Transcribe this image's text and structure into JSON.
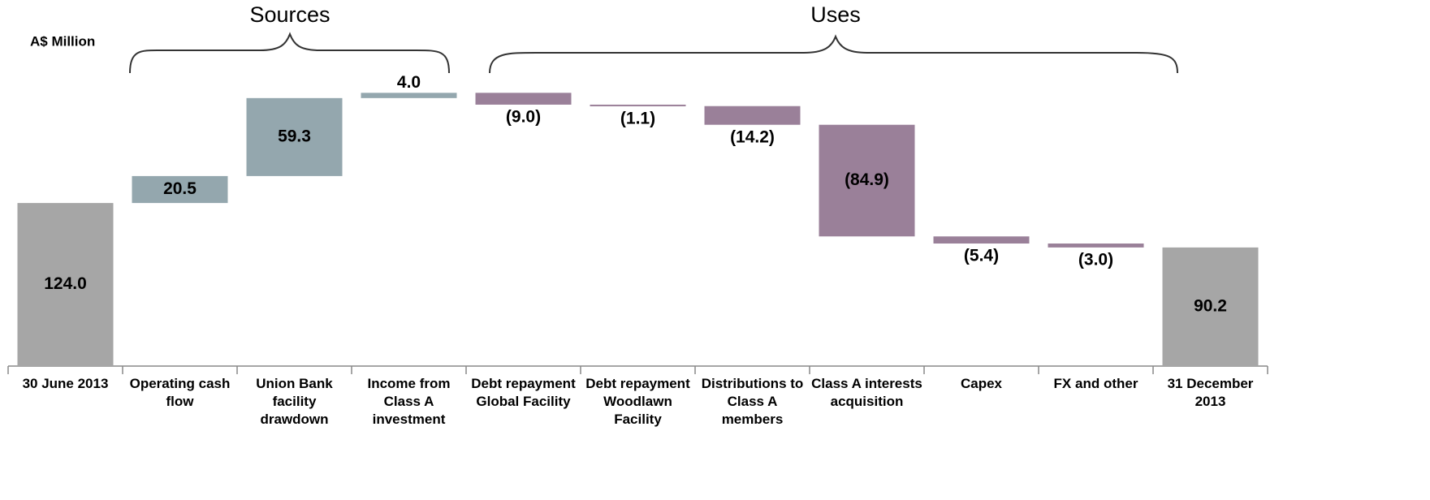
{
  "chart_data": {
    "type": "waterfall",
    "y_label": "A$ Million",
    "annotations": [
      "Sources",
      "Uses"
    ],
    "categories": [
      "30 June 2013",
      "Operating cash flow",
      "Union Bank facility drawdown",
      "Income from Class A investment",
      "Debt repayment Global Facility",
      "Debt repayment Woodlawn Facility",
      "Distributions to Class A members",
      "Class A interests acquisition",
      "Capex",
      "FX and other",
      "31 December 2013"
    ],
    "values": [
      124.0,
      20.5,
      59.3,
      4.0,
      -9.0,
      -1.1,
      -14.2,
      -84.9,
      -5.4,
      -3.0,
      90.2
    ],
    "value_labels": [
      "124.0",
      "20.5",
      "59.3",
      "4.0",
      "(9.0)",
      "(1.1)",
      "(14.2)",
      "(84.9)",
      "(5.4)",
      "(3.0)",
      "90.2"
    ],
    "colors": {
      "total": "#a6a6a6",
      "increase": "#94a7ae",
      "decrease": "#9a8099"
    },
    "ylim": [
      0,
      250
    ]
  }
}
